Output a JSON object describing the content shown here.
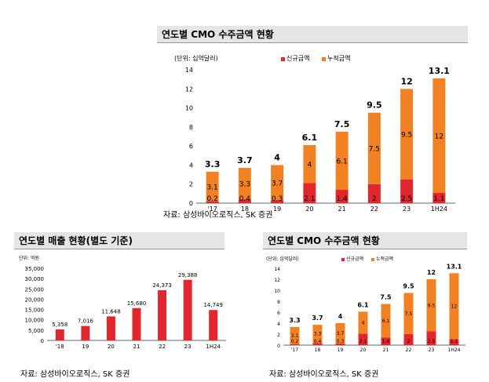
{
  "colors": {
    "new": "#e2262d",
    "cumulative": "#f28123",
    "revenue": "#e2262d",
    "title_bg": "#e5e5e5"
  },
  "panels": {
    "top": {
      "title": "연도별 CMO 수주금액 현황",
      "source": "자료: 삼성바이오로직스, SK 증권"
    },
    "left": {
      "title": "연도별 매출 현황(별도 기준)",
      "source": "자료: 삼성바이오로직스, SK 증권"
    },
    "right": {
      "title": "연도별 CMO 수주금액 현황",
      "source": "자료: 삼성바이오로직스, SK 증권"
    }
  },
  "chart_data": [
    {
      "id": "top",
      "type": "bar",
      "stacked": true,
      "unit_label": "(단위: 십억달러)",
      "categories": [
        "'17",
        "18",
        "19",
        "20",
        "21",
        "22",
        "23",
        "1H24"
      ],
      "series": [
        {
          "name": "신규금액",
          "values": [
            0.2,
            0.4,
            0.3,
            2.1,
            1.4,
            2,
            2.5,
            1.1
          ]
        },
        {
          "name": "누적금액",
          "values": [
            3.1,
            3.3,
            3.7,
            4,
            6.1,
            7.5,
            9.5,
            12
          ]
        }
      ],
      "totals": [
        "3.3",
        "3.7",
        "4",
        "6.1",
        "7.5",
        "9.5",
        "12",
        "13.1"
      ],
      "yticks": [
        0,
        2,
        4,
        6,
        8,
        10,
        12,
        14
      ],
      "ylim": [
        0,
        14
      ],
      "legend": "top-left"
    },
    {
      "id": "left",
      "type": "bar",
      "unit_label": "단위: 억원",
      "categories": [
        "'18",
        "19",
        "20",
        "21",
        "22",
        "23",
        "1H24"
      ],
      "values": [
        5358,
        7016,
        11648,
        15680,
        24373,
        29388,
        14749
      ],
      "labels": [
        "5,358",
        "7,016",
        "11,648",
        "15,680",
        "24,373",
        "29,388",
        "14,749"
      ],
      "yticks": [
        "0",
        "5,000",
        "10,000",
        "15,000",
        "20,000",
        "25,000",
        "30,000",
        "35,000"
      ],
      "ylim": [
        0,
        35000
      ]
    },
    {
      "id": "right",
      "type": "bar",
      "stacked": true,
      "unit_label": "(단위: 십억달러)",
      "categories": [
        "'17",
        "18",
        "19",
        "20",
        "21",
        "22",
        "23",
        "1H24"
      ],
      "series": [
        {
          "name": "신규금액",
          "values": [
            0.2,
            0.4,
            0.3,
            2.1,
            1.4,
            2,
            2.5,
            1.1
          ]
        },
        {
          "name": "누적금액",
          "values": [
            3.1,
            3.3,
            3.7,
            4,
            6.1,
            7.5,
            9.5,
            12
          ]
        }
      ],
      "totals": [
        "3.3",
        "3.7",
        "4",
        "6.1",
        "7.5",
        "9.5",
        "12",
        "13.1"
      ],
      "yticks": [
        0,
        2,
        4,
        6,
        8,
        10,
        12,
        14
      ],
      "ylim": [
        0,
        14
      ],
      "legend": "top-left"
    }
  ]
}
